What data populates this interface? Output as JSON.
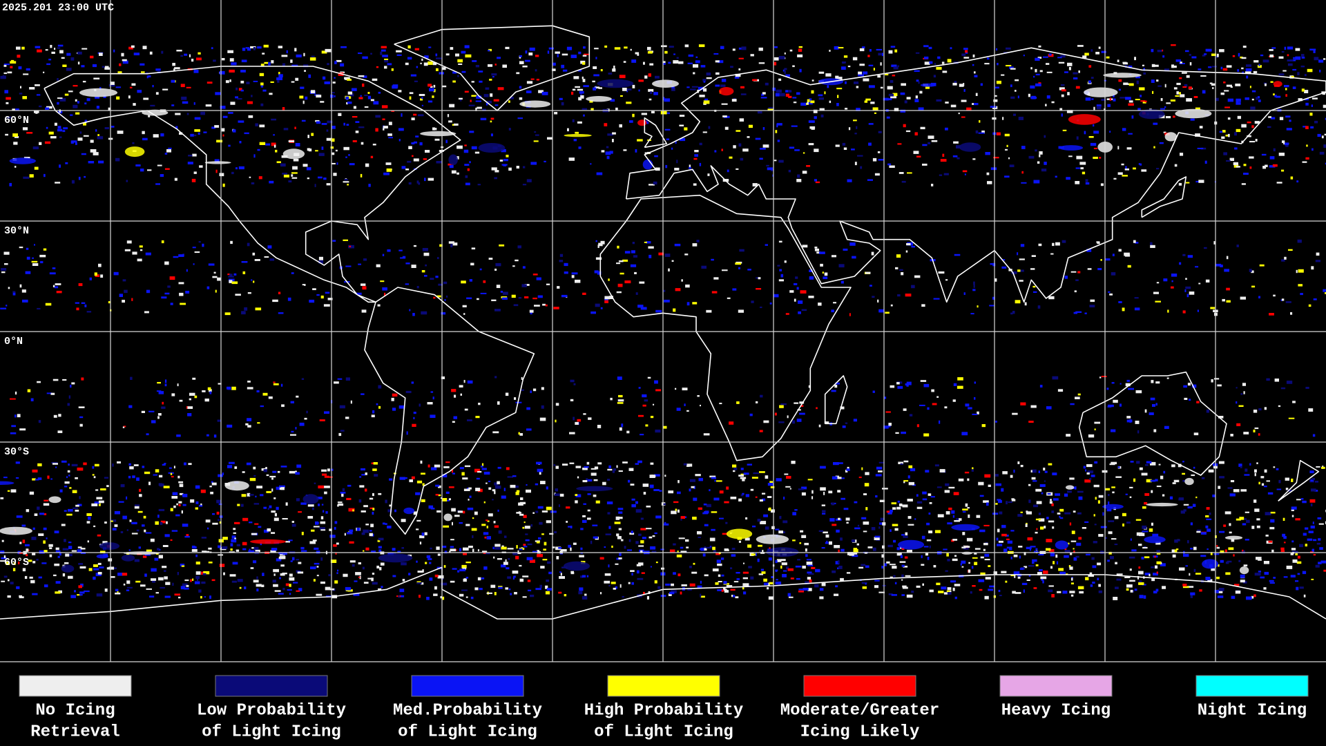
{
  "header": {
    "timestamp": "2025.201 23:00 UTC"
  },
  "map": {
    "latitude_labels": [
      "60°N",
      "30°N",
      "0°N",
      "30°S",
      "60°S"
    ]
  },
  "legend": {
    "items": [
      {
        "color": "#eeeeee",
        "lines": [
          "No Icing",
          "Retrieval"
        ]
      },
      {
        "color": "#0a0a78",
        "lines": [
          "Low Probability",
          "of Light Icing"
        ]
      },
      {
        "color": "#0a14f5",
        "lines": [
          "Med.Probability",
          "of Light Icing"
        ]
      },
      {
        "color": "#ffff00",
        "lines": [
          "High Probability",
          "of Light Icing"
        ]
      },
      {
        "color": "#ff0000",
        "lines": [
          "Moderate/Greater",
          "Icing Likely"
        ]
      },
      {
        "color": "#e6a6e6",
        "lines": [
          "Heavy Icing"
        ]
      },
      {
        "color": "#00ffff",
        "lines": [
          "Night Icing"
        ]
      }
    ]
  }
}
